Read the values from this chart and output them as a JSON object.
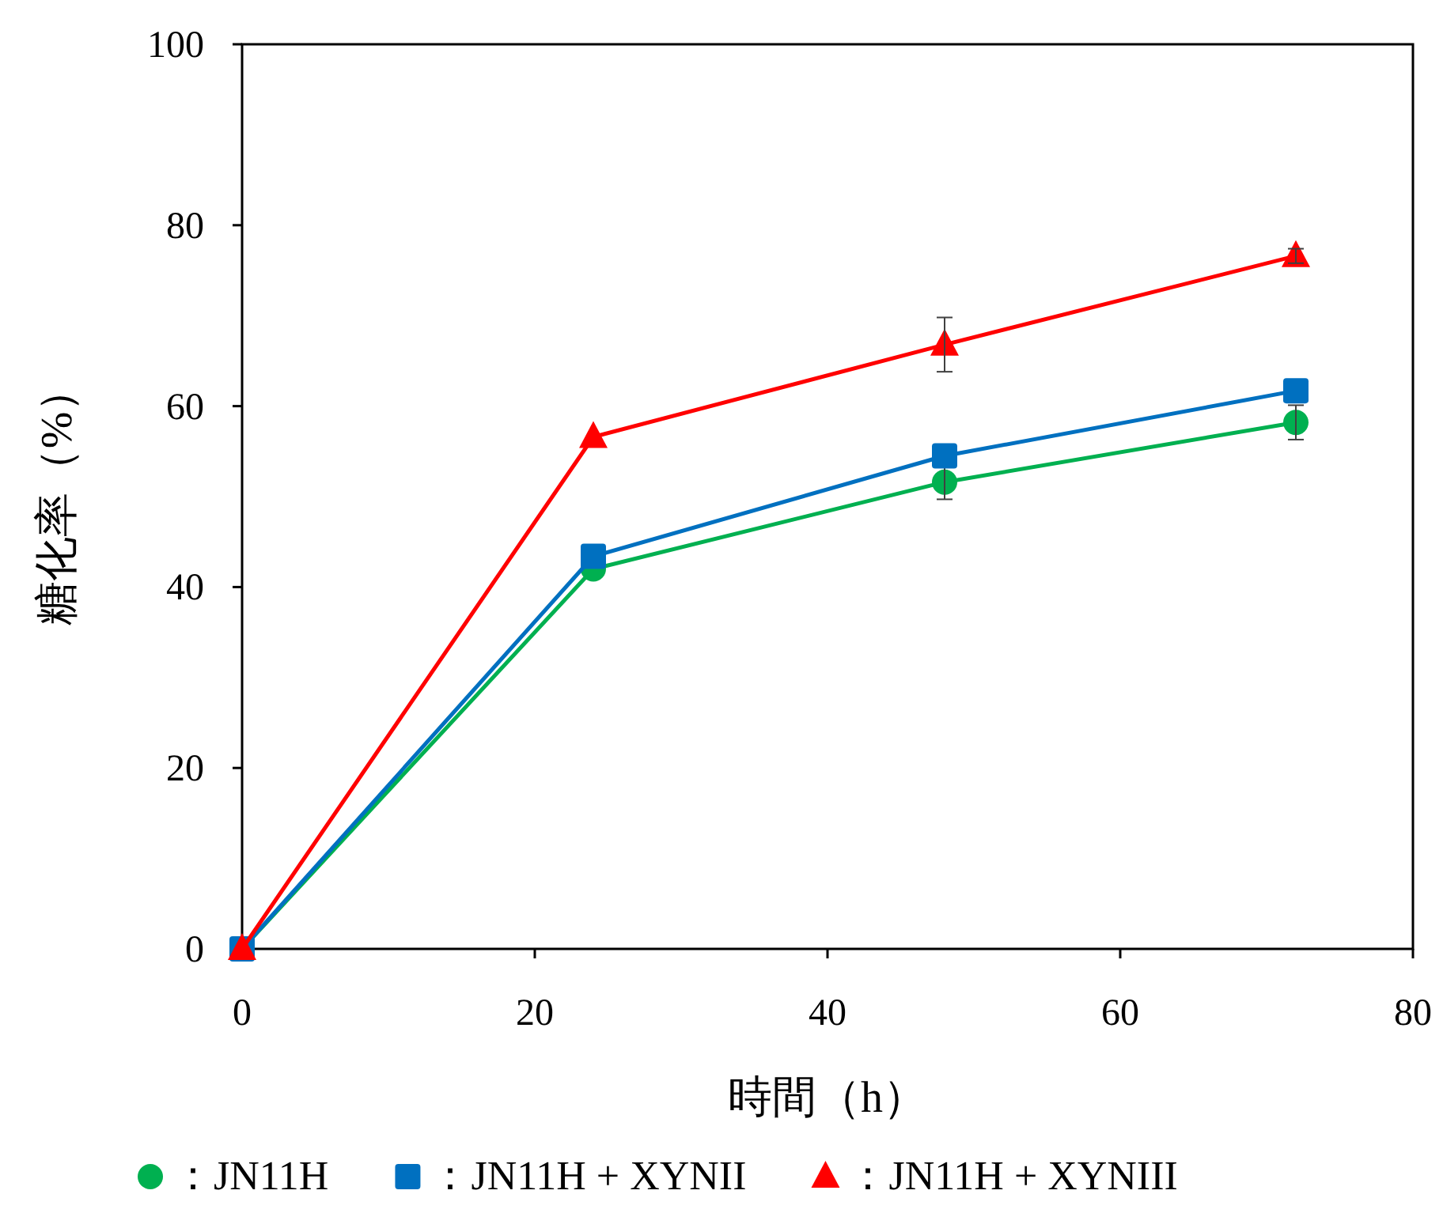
{
  "chart_data": {
    "type": "line",
    "xlabel": "時間（h）",
    "ylabel": "糖化率（%）",
    "x": [
      0,
      24,
      48,
      72
    ],
    "xlim": [
      0,
      80
    ],
    "xticks": [
      0,
      20,
      40,
      60,
      80
    ],
    "ylim": [
      0,
      100
    ],
    "yticks": [
      0,
      20,
      40,
      60,
      80,
      100
    ],
    "grid": false,
    "legend": "bottom",
    "series": [
      {
        "name": "：JN11H",
        "color": "#00b050",
        "marker": "circle",
        "values": [
          0,
          42.0,
          51.6,
          58.2
        ],
        "errors": [
          null,
          null,
          1.9,
          1.9
        ]
      },
      {
        "name": "：JN11H + XYNII",
        "color": "#0070c0",
        "marker": "square",
        "values": [
          0,
          43.4,
          54.5,
          61.7
        ],
        "errors": [
          null,
          null,
          null,
          null
        ]
      },
      {
        "name": "：JN11H + XYNIII",
        "color": "#ff0000",
        "marker": "triangle",
        "values": [
          0,
          56.6,
          66.8,
          76.6
        ],
        "errors": [
          null,
          null,
          3.0,
          0.8
        ]
      }
    ]
  }
}
